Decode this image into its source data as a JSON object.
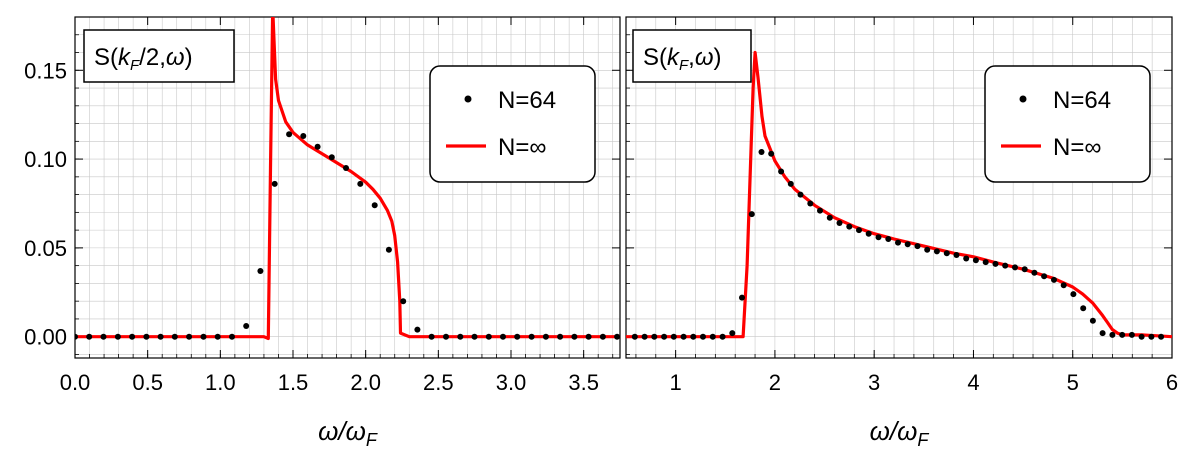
{
  "chart_data": [
    {
      "type": "scatter",
      "title": "S(k_F/2,ω)",
      "title_main": "S(",
      "title_k": "k",
      "title_sub": "F",
      "title_rest": "/2,",
      "title_omega": "ω",
      "title_close": ")",
      "xlabel_main": "ω/ω",
      "xlabel_sub": "F",
      "xlim": [
        0,
        3.75
      ],
      "ylim": [
        -0.012,
        0.18
      ],
      "x_ticks": [
        "0.0",
        "0.5",
        "1.0",
        "1.5",
        "2.0",
        "2.5",
        "3.0",
        "3.5"
      ],
      "x_tick_values": [
        0,
        0.5,
        1.0,
        1.5,
        2.0,
        2.5,
        3.0,
        3.5
      ],
      "y_ticks": [
        "0.00",
        "0.05",
        "0.10",
        "0.15"
      ],
      "y_tick_values": [
        0,
        0.05,
        0.1,
        0.15
      ],
      "grid": true,
      "legend_position": "top-right",
      "legend": [
        "N=64",
        "N=∞"
      ],
      "series": [
        {
          "name": "N=64",
          "kind": "points",
          "color": "#000000",
          "x": [
            0.0,
            0.098,
            0.196,
            0.295,
            0.393,
            0.491,
            0.589,
            0.687,
            0.785,
            0.884,
            0.982,
            1.08,
            1.178,
            1.276,
            1.374,
            1.473,
            1.571,
            1.669,
            1.767,
            1.865,
            1.963,
            2.062,
            2.16,
            2.258,
            2.356,
            2.454,
            2.553,
            2.651,
            2.749,
            2.847,
            2.945,
            3.043,
            3.142,
            3.24,
            3.338,
            3.436,
            3.534,
            3.632,
            3.73
          ],
          "y": [
            0.0,
            0.0,
            0.0,
            0.0,
            0.0,
            0.0,
            0.0,
            0.0,
            0.0,
            0.0,
            0.0,
            0.0,
            0.006,
            0.037,
            0.086,
            0.114,
            0.113,
            0.107,
            0.101,
            0.095,
            0.086,
            0.074,
            0.049,
            0.02,
            0.004,
            0.0,
            0.0,
            0.0,
            0.0,
            0.0,
            0.0,
            0.0,
            0.0,
            0.0,
            0.0,
            0.0,
            0.0,
            0.0,
            0.0
          ]
        },
        {
          "name": "N=∞",
          "kind": "line",
          "color": "#ff0000",
          "x": [
            0.0,
            0.3,
            0.6,
            0.9,
            1.2,
            1.3,
            1.33,
            1.345,
            1.36,
            1.38,
            1.4,
            1.45,
            1.5,
            1.6,
            1.7,
            1.8,
            1.9,
            2.0,
            2.05,
            2.1,
            2.15,
            2.18,
            2.2,
            2.22,
            2.235,
            2.24,
            2.3,
            2.5,
            2.8,
            3.2,
            3.75
          ],
          "y": [
            0.0,
            0.0,
            0.0,
            0.0,
            0.0,
            0.0,
            -0.001,
            0.095,
            0.185,
            0.145,
            0.133,
            0.121,
            0.115,
            0.108,
            0.103,
            0.098,
            0.093,
            0.087,
            0.083,
            0.078,
            0.071,
            0.065,
            0.057,
            0.042,
            0.02,
            0.002,
            0.0,
            0.0,
            0.0,
            0.0,
            0.0
          ]
        }
      ]
    },
    {
      "type": "scatter",
      "title": "S(k_F,ω)",
      "title_main": "S(",
      "title_k": "k",
      "title_sub": "F",
      "title_rest": ",",
      "title_omega": "ω",
      "title_close": ")",
      "xlabel_main": "ω/ω",
      "xlabel_sub": "F",
      "xlim": [
        0.5,
        6.0
      ],
      "ylim": [
        -0.012,
        0.18
      ],
      "x_ticks": [
        "1",
        "2",
        "3",
        "4",
        "5",
        "6"
      ],
      "x_tick_values": [
        1,
        2,
        3,
        4,
        5,
        6
      ],
      "grid": true,
      "legend_position": "top-right",
      "legend": [
        "N=64",
        "N=∞"
      ],
      "series": [
        {
          "name": "N=64",
          "kind": "points",
          "color": "#000000",
          "x": [
            0.589,
            0.687,
            0.785,
            0.884,
            0.982,
            1.08,
            1.178,
            1.276,
            1.374,
            1.473,
            1.571,
            1.669,
            1.767,
            1.865,
            1.963,
            2.062,
            2.16,
            2.258,
            2.356,
            2.454,
            2.553,
            2.651,
            2.749,
            2.847,
            2.945,
            3.043,
            3.142,
            3.24,
            3.338,
            3.436,
            3.534,
            3.632,
            3.731,
            3.829,
            3.927,
            4.025,
            4.123,
            4.222,
            4.32,
            4.418,
            4.516,
            4.614,
            4.712,
            4.811,
            4.909,
            5.007,
            5.105,
            5.203,
            5.301,
            5.4,
            5.498,
            5.596,
            5.694,
            5.792,
            5.89
          ],
          "y": [
            0.0,
            0.0,
            0.0,
            0.0,
            0.0,
            0.0,
            0.0,
            0.0,
            0.0,
            0.0,
            0.002,
            0.022,
            0.069,
            0.104,
            0.103,
            0.093,
            0.086,
            0.08,
            0.075,
            0.071,
            0.067,
            0.064,
            0.062,
            0.06,
            0.058,
            0.056,
            0.055,
            0.053,
            0.052,
            0.051,
            0.049,
            0.048,
            0.047,
            0.046,
            0.044,
            0.043,
            0.042,
            0.041,
            0.04,
            0.039,
            0.038,
            0.036,
            0.034,
            0.032,
            0.029,
            0.024,
            0.016,
            0.009,
            0.002,
            0.001,
            0.001,
            0.001,
            0.0,
            0.0,
            0.0
          ]
        },
        {
          "name": "N=∞",
          "kind": "line",
          "color": "#ff0000",
          "x": [
            0.5,
            1.0,
            1.5,
            1.6,
            1.68,
            1.72,
            1.75,
            1.78,
            1.8,
            1.83,
            1.87,
            1.9,
            2.0,
            2.1,
            2.2,
            2.4,
            2.6,
            2.8,
            3.0,
            3.2,
            3.5,
            3.8,
            4.0,
            4.2,
            4.5,
            4.8,
            5.0,
            5.1,
            5.2,
            5.3,
            5.35,
            5.4,
            5.45,
            5.5,
            5.7,
            6.0
          ],
          "y": [
            0.0,
            0.0,
            0.0,
            0.0,
            0.0,
            0.04,
            0.09,
            0.14,
            0.16,
            0.146,
            0.124,
            0.113,
            0.099,
            0.09,
            0.083,
            0.074,
            0.067,
            0.062,
            0.058,
            0.055,
            0.051,
            0.047,
            0.045,
            0.042,
            0.038,
            0.033,
            0.028,
            0.024,
            0.019,
            0.012,
            0.008,
            0.004,
            0.002,
            0.001,
            0.001,
            0.0
          ]
        }
      ]
    }
  ]
}
